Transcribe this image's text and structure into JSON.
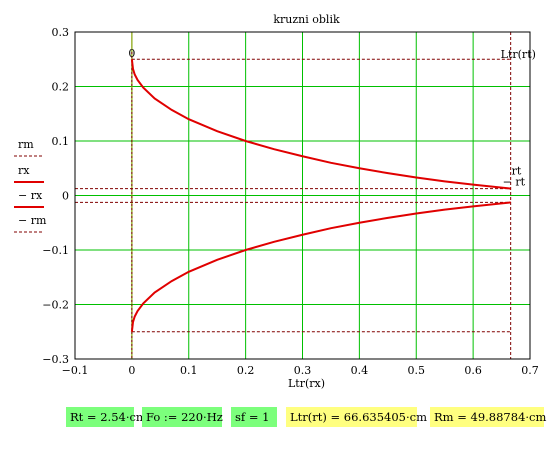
{
  "chart_data": {
    "type": "line",
    "title": "kruzni oblik",
    "xlabel": "Ltr(rx)",
    "xlim": [
      -0.1,
      0.7
    ],
    "ylim": [
      -0.3,
      0.3
    ],
    "x_ticks": [
      "-0.1",
      "0",
      "0.1",
      "0.2",
      "0.3",
      "0.4",
      "0.5",
      "0.6",
      "0.7"
    ],
    "y_ticks": [
      "0.3",
      "0.2",
      "0.1",
      "0",
      "-0.1",
      "-0.2",
      "-0.3"
    ],
    "grid": true,
    "colors": {
      "curve": "#e00000",
      "grid": "#00c000",
      "marker_line": "#800000",
      "vertical_olive": "#9a9a00"
    },
    "legend": [
      "rm",
      "rx",
      "− rx",
      "− rm"
    ],
    "series": [
      {
        "name": "rx",
        "x": [
          0,
          0.002,
          0.005,
          0.01,
          0.02,
          0.04,
          0.07,
          0.1,
          0.15,
          0.2,
          0.25,
          0.3,
          0.35,
          0.4,
          0.45,
          0.5,
          0.55,
          0.6,
          0.666
        ],
        "values": [
          0.25,
          0.232,
          0.222,
          0.212,
          0.198,
          0.178,
          0.157,
          0.14,
          0.118,
          0.1,
          0.085,
          0.072,
          0.06,
          0.05,
          0.041,
          0.033,
          0.026,
          0.02,
          0.0127
        ]
      },
      {
        "name": "− rx",
        "x": [
          0,
          0.002,
          0.005,
          0.01,
          0.02,
          0.04,
          0.07,
          0.1,
          0.15,
          0.2,
          0.25,
          0.3,
          0.35,
          0.4,
          0.45,
          0.5,
          0.55,
          0.6,
          0.666
        ],
        "values": [
          -0.25,
          -0.232,
          -0.222,
          -0.212,
          -0.198,
          -0.178,
          -0.157,
          -0.14,
          -0.118,
          -0.1,
          -0.085,
          -0.072,
          -0.06,
          -0.05,
          -0.041,
          -0.033,
          -0.026,
          -0.02,
          -0.0127
        ]
      },
      {
        "name": "rm",
        "x": [
          0,
          0.666
        ],
        "values": [
          0.25,
          0.25
        ]
      },
      {
        "name": "− rm",
        "x": [
          0,
          0.666
        ],
        "values": [
          -0.25,
          -0.25
        ]
      },
      {
        "name": "rt",
        "x": [
          -0.1,
          0.666
        ],
        "values": [
          0.0127,
          0.0127
        ]
      },
      {
        "name": "− rt",
        "x": [
          -0.1,
          0.666
        ],
        "values": [
          -0.0127,
          -0.0127
        ]
      }
    ],
    "vertical_markers": [
      {
        "x": 0,
        "label": "0"
      },
      {
        "x": 0.666,
        "label": "Ltr(rt)"
      }
    ],
    "curve_end_labels": [
      "rt",
      "− rt"
    ]
  },
  "results": {
    "rt": "Rt = 2.54·cm",
    "fo": "Fo := 220·Hz",
    "sf": "sf = 1",
    "ltr": "Ltr(rt) = 66.635405·cm",
    "rm": "Rm = 49.88784·cm"
  }
}
